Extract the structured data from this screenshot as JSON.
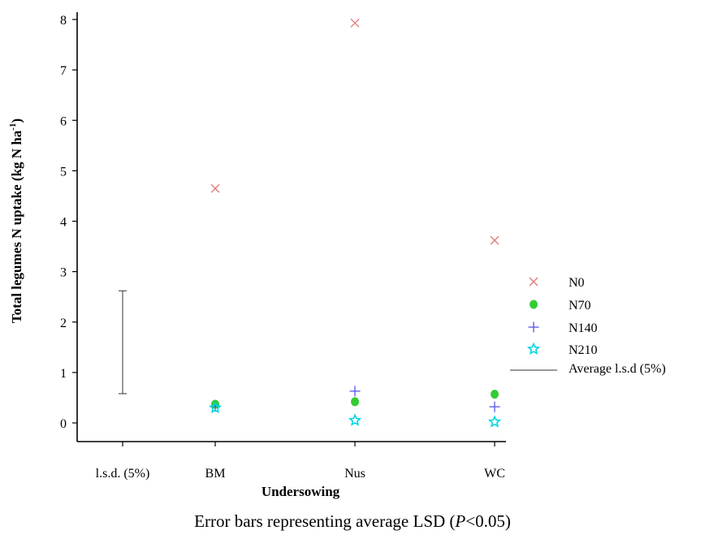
{
  "chart_data": {
    "type": "scatter",
    "title": "",
    "xlabel": "Undersowing",
    "ylabel": "Total legumes N uptake (kg N ha",
    "ylabel_sup": "-1",
    "ylabel_suffix": ")",
    "categories": [
      "l.s.d. (5%)",
      "BM",
      "Nus",
      "WC"
    ],
    "ylim": [
      0,
      8
    ],
    "yticks": [
      0,
      1,
      2,
      3,
      4,
      5,
      6,
      7,
      8
    ],
    "grid": false,
    "legend_position": "right",
    "series": [
      {
        "name": "N0",
        "marker": "x",
        "color": "#e07a7a",
        "values": [
          null,
          4.65,
          7.93,
          3.62
        ]
      },
      {
        "name": "N70",
        "marker": "filled-circle",
        "color": "#33cc33",
        "values": [
          null,
          0.37,
          0.42,
          0.57
        ]
      },
      {
        "name": "N140",
        "marker": "plus",
        "color": "#5555ee",
        "values": [
          null,
          0.33,
          0.63,
          0.32
        ]
      },
      {
        "name": "N210",
        "marker": "star",
        "color": "#00d8e0",
        "values": [
          null,
          0.3,
          0.05,
          0.02
        ]
      }
    ],
    "error_bar": {
      "name": "Average l.s.d (5%)",
      "category": "l.s.d. (5%)",
      "low": 0.58,
      "high": 2.62,
      "color": "#333333"
    }
  },
  "caption": {
    "prefix": "Error bars representing average LSD (",
    "italic": "P",
    "suffix": "<0.05)"
  }
}
